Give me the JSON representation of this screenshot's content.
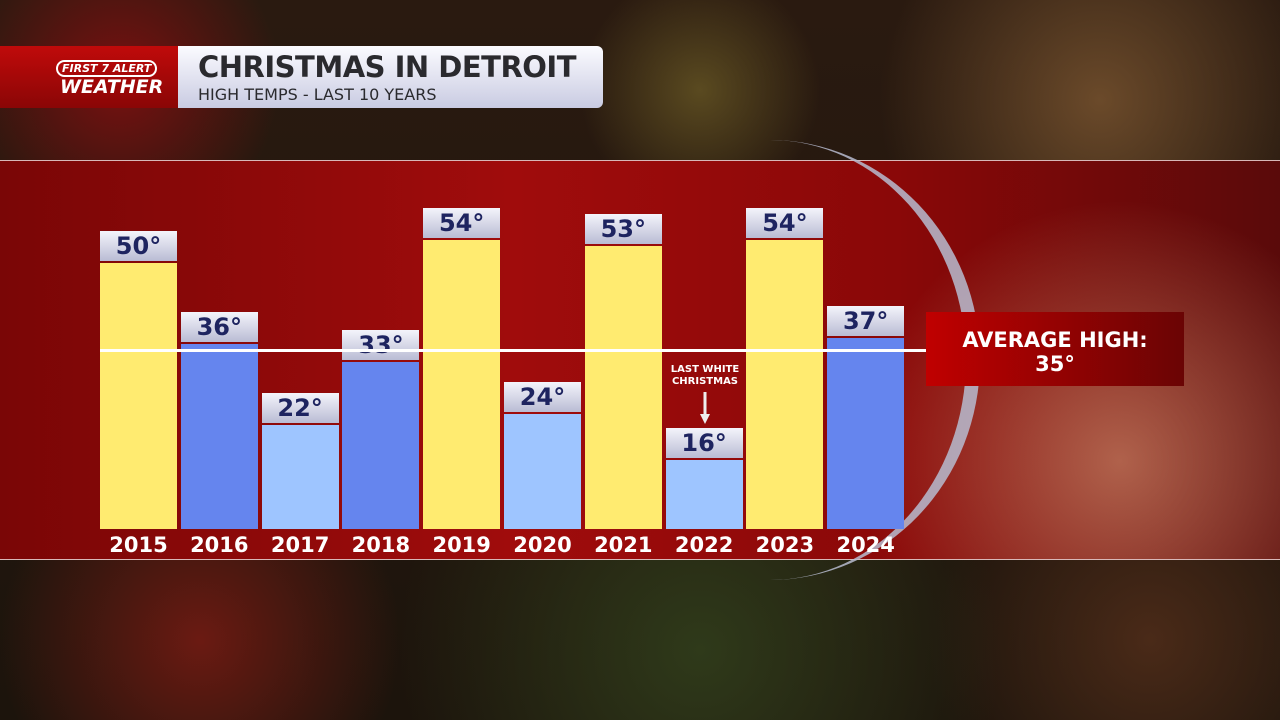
{
  "header": {
    "logo_line1": "FIRST 7 ALERT",
    "logo_line2": "WEATHER",
    "title": "CHRISTMAS IN DETROIT",
    "subtitle": "HIGH TEMPS - LAST 10 YEARS"
  },
  "colors": {
    "warm": "#FFEB70",
    "mid": "#6585EE",
    "cold": "#9EC5FF",
    "label_text": "#1E2460",
    "accent_red": "#C00000"
  },
  "chart_data": {
    "type": "bar",
    "title": "CHRISTMAS IN DETROIT",
    "subtitle": "HIGH TEMPS - LAST 10 YEARS",
    "categories": [
      "2015",
      "2016",
      "2017",
      "2018",
      "2019",
      "2020",
      "2021",
      "2022",
      "2023",
      "2024"
    ],
    "values": [
      50,
      36,
      22,
      33,
      54,
      24,
      53,
      16,
      54,
      37
    ],
    "data_labels": [
      "50°",
      "36°",
      "22°",
      "33°",
      "54°",
      "24°",
      "53°",
      "16°",
      "54°",
      "37°"
    ],
    "reference_line": {
      "value": 35,
      "label": "AVERAGE HIGH:",
      "value_label": "35°"
    },
    "annotations": [
      {
        "category": "2022",
        "text": "LAST WHITE CHRISTMAS"
      }
    ],
    "grid": false
  }
}
